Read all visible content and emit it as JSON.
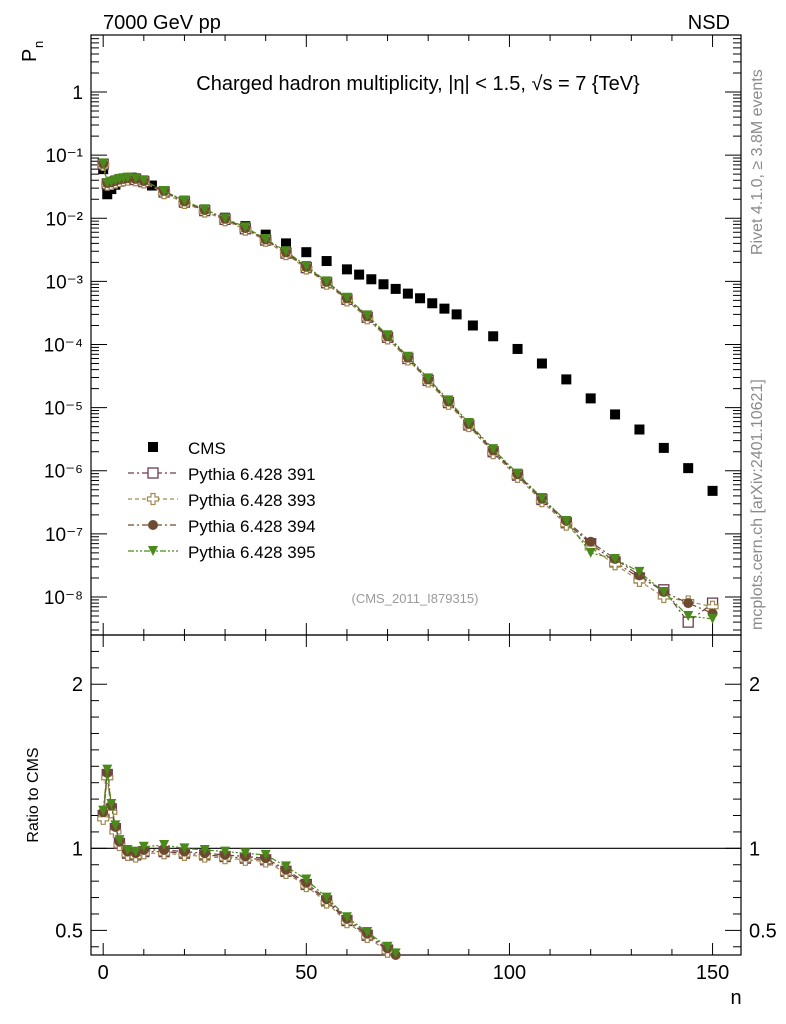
{
  "header": {
    "left": "7000 GeV pp",
    "right": "NSD"
  },
  "side_text": {
    "top": "Rivet 4.1.0, ≥ 3.8M events",
    "bottom": "mcplots.cern.ch [arXiv:2401.10621]"
  },
  "chart_data": {
    "type": "scatter",
    "title": "Charged hadron multiplicity, |η| < 1.5, √s = 7 {TeV}",
    "watermark": "(CMS_2011_I879315)",
    "main": {
      "ylabel": "P",
      "ylabel_sub": "n",
      "yscale": "log",
      "ylim": [
        2.5e-09,
        8
      ],
      "ytick_labels": [
        "10⁻⁸",
        "10⁻⁷",
        "10⁻⁶",
        "10⁻⁵",
        "10⁻⁴",
        "10⁻³",
        "10⁻²",
        "10⁻¹",
        "1"
      ],
      "ytick_values": [
        1e-08,
        1e-07,
        1e-06,
        1e-05,
        0.0001,
        0.001,
        0.01,
        0.1,
        1
      ]
    },
    "ratio": {
      "ylabel": "Ratio to CMS",
      "ylim": [
        0.35,
        2.3
      ],
      "ytick_labels": [
        "0.5",
        "1",
        "2"
      ],
      "ytick_values": [
        0.5,
        1,
        2
      ],
      "reference_line": 1
    },
    "xaxis": {
      "xlabel": "n",
      "xlim": [
        -3,
        157
      ],
      "xtick_labels": [
        "0",
        "50",
        "100",
        "150"
      ],
      "xtick_values": [
        0,
        50,
        100,
        150
      ]
    },
    "series": [
      {
        "name": "CMS",
        "color": "#000000",
        "marker": "square-filled",
        "x": [
          0,
          1,
          2,
          3,
          4,
          5,
          6,
          7,
          8,
          10,
          12,
          15,
          20,
          25,
          30,
          35,
          40,
          45,
          50,
          55,
          60,
          63,
          66,
          69,
          72,
          75,
          78,
          81,
          84,
          87,
          91,
          96,
          102,
          108,
          114,
          120,
          126,
          132,
          138,
          144,
          150
        ],
        "y": [
          0.06,
          0.024,
          0.029,
          0.034,
          0.038,
          0.041,
          0.043,
          0.044,
          0.043,
          0.038,
          0.033,
          0.027,
          0.019,
          0.0138,
          0.0102,
          0.0075,
          0.0055,
          0.004,
          0.0029,
          0.0021,
          0.00155,
          0.00128,
          0.00108,
          0.0009,
          0.00076,
          0.00064,
          0.00054,
          0.00045,
          0.00037,
          0.0003,
          0.0002,
          0.000135,
          8.5e-05,
          5e-05,
          2.8e-05,
          1.4e-05,
          7.8e-06,
          4.5e-06,
          2.3e-06,
          1.1e-06,
          4.8e-07
        ]
      },
      {
        "name": "Pythia 6.428 391",
        "color": "#6e3a4e",
        "marker": "square-open",
        "x": [
          0,
          1,
          2,
          3,
          4,
          5,
          6,
          8,
          10,
          15,
          20,
          25,
          30,
          35,
          40,
          45,
          50,
          55,
          60,
          65,
          70,
          75,
          80,
          85,
          90,
          96,
          102,
          108,
          114,
          120,
          126,
          132,
          138,
          144,
          150
        ],
        "y": [
          0.072,
          0.035,
          0.036,
          0.038,
          0.04,
          0.041,
          0.042,
          0.041,
          0.038,
          0.026,
          0.018,
          0.0132,
          0.0096,
          0.0068,
          0.0045,
          0.0028,
          0.00165,
          0.00095,
          0.00052,
          0.00027,
          0.00013,
          6e-05,
          2.7e-05,
          1.2e-05,
          5.3e-06,
          2e-06,
          8.5e-07,
          3.5e-07,
          1.5e-07,
          7e-08,
          3.6e-08,
          2e-08,
          1.3e-08,
          4e-09,
          8e-09
        ]
      },
      {
        "name": "Pythia 6.428 393",
        "color": "#a08a50",
        "marker": "cross-open",
        "x": [
          0,
          1,
          2,
          3,
          4,
          5,
          6,
          8,
          10,
          15,
          20,
          25,
          30,
          35,
          40,
          45,
          50,
          55,
          60,
          65,
          70,
          75,
          80,
          85,
          90,
          96,
          102,
          108,
          114,
          120,
          126,
          132,
          138,
          144,
          150
        ],
        "y": [
          0.07,
          0.034,
          0.035,
          0.037,
          0.039,
          0.04,
          0.041,
          0.04,
          0.037,
          0.025,
          0.0175,
          0.0128,
          0.0093,
          0.0066,
          0.0044,
          0.0027,
          0.0016,
          0.00092,
          0.0005,
          0.00026,
          0.000125,
          5.8e-05,
          2.6e-05,
          1.15e-05,
          5.1e-06,
          1.9e-06,
          8e-07,
          3.3e-07,
          1.4e-07,
          6e-08,
          3.3e-08,
          1.8e-08,
          1e-08,
          8.5e-09,
          7e-09
        ]
      },
      {
        "name": "Pythia 6.428 394",
        "color": "#6e4a30",
        "marker": "circle-filled",
        "x": [
          0,
          1,
          2,
          3,
          4,
          5,
          6,
          8,
          10,
          15,
          20,
          25,
          30,
          35,
          40,
          45,
          50,
          55,
          60,
          65,
          70,
          75,
          80,
          85,
          90,
          96,
          102,
          108,
          114,
          120,
          126,
          132,
          138,
          144,
          150
        ],
        "y": [
          0.073,
          0.036,
          0.037,
          0.039,
          0.041,
          0.042,
          0.043,
          0.042,
          0.039,
          0.027,
          0.0185,
          0.0135,
          0.0098,
          0.007,
          0.0046,
          0.0029,
          0.0017,
          0.00098,
          0.00054,
          0.00028,
          0.000135,
          6.2e-05,
          2.8e-05,
          1.25e-05,
          5.5e-06,
          2.1e-06,
          8.8e-07,
          3.6e-07,
          1.6e-07,
          7.5e-08,
          4e-08,
          2.2e-08,
          1.2e-08,
          8e-09,
          5.5e-09
        ]
      },
      {
        "name": "Pythia 6.428 395",
        "color": "#4a8a1a",
        "marker": "triangle-down-filled",
        "x": [
          0,
          1,
          2,
          3,
          4,
          5,
          6,
          8,
          10,
          15,
          20,
          25,
          30,
          35,
          40,
          45,
          50,
          55,
          60,
          65,
          70,
          75,
          80,
          85,
          90,
          96,
          102,
          108,
          114,
          120,
          126,
          132,
          138,
          144,
          150
        ],
        "y": [
          0.074,
          0.036,
          0.038,
          0.04,
          0.042,
          0.043,
          0.044,
          0.043,
          0.04,
          0.027,
          0.019,
          0.0138,
          0.01,
          0.0072,
          0.0047,
          0.003,
          0.00175,
          0.001,
          0.00055,
          0.00029,
          0.00014,
          6.4e-05,
          2.9e-05,
          1.3e-05,
          5.7e-06,
          2.2e-06,
          9e-07,
          3.7e-07,
          1.6e-07,
          5e-08,
          4e-08,
          2.5e-08,
          1.2e-08,
          5e-09,
          4.5e-09
        ]
      }
    ],
    "ratio_series": [
      {
        "name": "Pythia 6.428 391",
        "x": [
          0,
          1,
          2,
          3,
          4,
          6,
          8,
          10,
          15,
          20,
          25,
          30,
          35,
          40,
          45,
          50,
          55,
          60,
          65,
          70,
          72
        ],
        "y": [
          1.2,
          1.45,
          1.24,
          1.12,
          1.03,
          0.97,
          0.96,
          0.98,
          0.98,
          0.97,
          0.96,
          0.95,
          0.94,
          0.93,
          0.86,
          0.78,
          0.68,
          0.56,
          0.47,
          0.38,
          0.34
        ]
      },
      {
        "name": "Pythia 6.428 393",
        "x": [
          0,
          1,
          2,
          3,
          4,
          6,
          8,
          10,
          15,
          20,
          25,
          30,
          35,
          40,
          45,
          50,
          55,
          60,
          65,
          70,
          72
        ],
        "y": [
          1.18,
          1.43,
          1.22,
          1.1,
          1.02,
          0.96,
          0.95,
          0.97,
          0.97,
          0.96,
          0.95,
          0.94,
          0.93,
          0.92,
          0.85,
          0.77,
          0.67,
          0.55,
          0.46,
          0.37,
          0.34
        ]
      },
      {
        "name": "Pythia 6.428 394",
        "x": [
          0,
          1,
          2,
          3,
          4,
          6,
          8,
          10,
          15,
          20,
          25,
          30,
          35,
          40,
          45,
          50,
          55,
          60,
          65,
          70,
          72
        ],
        "y": [
          1.22,
          1.46,
          1.26,
          1.13,
          1.04,
          0.98,
          0.97,
          0.99,
          0.99,
          0.98,
          0.97,
          0.96,
          0.95,
          0.94,
          0.87,
          0.79,
          0.69,
          0.57,
          0.48,
          0.39,
          0.35
        ]
      },
      {
        "name": "Pythia 6.428 395",
        "x": [
          0,
          1,
          2,
          3,
          4,
          6,
          8,
          10,
          15,
          20,
          25,
          30,
          35,
          40,
          45,
          50,
          55,
          60,
          65,
          70,
          72
        ],
        "y": [
          1.23,
          1.48,
          1.27,
          1.14,
          1.05,
          0.99,
          0.98,
          1.01,
          1.02,
          1.0,
          0.99,
          0.98,
          0.97,
          0.96,
          0.89,
          0.81,
          0.7,
          0.58,
          0.49,
          0.4,
          0.36
        ]
      }
    ]
  }
}
